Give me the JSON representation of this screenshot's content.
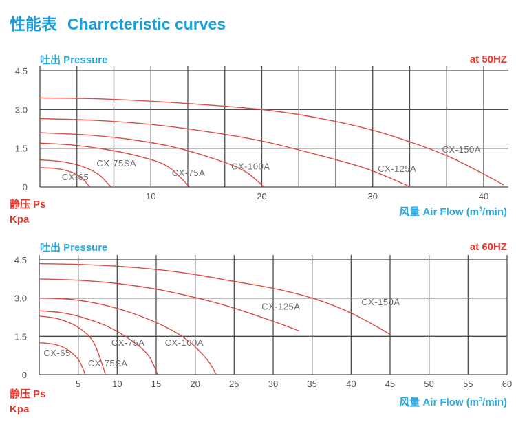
{
  "page": {
    "title_cn": "性能表",
    "title_en": "Charrcteristic curves"
  },
  "colors": {
    "accent_blue": "#18a0de",
    "red_text": "#e8392e",
    "curve_red": "#dc4b42",
    "grid_gray": "#4e4e4e"
  },
  "chart_data": [
    {
      "type": "line",
      "id": "50hz",
      "pressure_label": "吐出 Pressure",
      "freq_label": "at  50HZ",
      "ylabel_line1": "静压 Ps",
      "ylabel_line2": "Kpa",
      "xlabel_prefix": "风量  Air Flow (m",
      "xlabel_sup": "3",
      "xlabel_suffix": "/min)",
      "xlim": [
        0,
        42
      ],
      "ylim": [
        0,
        4.5
      ],
      "grid_on": true,
      "x_ticks": [
        {
          "value": 10,
          "label": "10"
        },
        {
          "value": 20,
          "label": "20"
        },
        {
          "value": 30,
          "label": "30"
        },
        {
          "value": 40,
          "label": "40"
        }
      ],
      "y_ticks": [
        {
          "value": 0,
          "label": "0"
        },
        {
          "value": 1.5,
          "label": "1.5"
        },
        {
          "value": 3,
          "label": "3.0"
        },
        {
          "value": 4.5,
          "label": "4.5"
        }
      ],
      "series": [
        {
          "name": "CX-65",
          "points": [
            [
              0,
              0.75
            ],
            [
              1.5,
              0.71
            ],
            [
              2.8,
              0.58
            ],
            [
              3.8,
              0.33
            ],
            [
              4.5,
              0
            ]
          ],
          "label": {
            "x": 3.2,
            "y": 0.27
          }
        },
        {
          "name": "CX-75SA",
          "points": [
            [
              0,
              1.05
            ],
            [
              2,
              0.98
            ],
            [
              3.8,
              0.8
            ],
            [
              5.3,
              0.48
            ],
            [
              6.4,
              0
            ]
          ],
          "label": {
            "x": 6.9,
            "y": 0.8
          }
        },
        {
          "name": "CX-75A",
          "points": [
            [
              0,
              1.7
            ],
            [
              3,
              1.62
            ],
            [
              6,
              1.45
            ],
            [
              9,
              1.18
            ],
            [
              11.5,
              0.8
            ],
            [
              13.5,
              0
            ]
          ],
          "label": {
            "x": 13.4,
            "y": 0.42
          }
        },
        {
          "name": "CX-100A",
          "points": [
            [
              0,
              2.1
            ],
            [
              4,
              2.02
            ],
            [
              8,
              1.85
            ],
            [
              12,
              1.55
            ],
            [
              16,
              1.05
            ],
            [
              18.5,
              0.6
            ],
            [
              20.2,
              0
            ]
          ],
          "label": {
            "x": 19.0,
            "y": 0.68
          }
        },
        {
          "name": "CX-125A",
          "points": [
            [
              0,
              2.65
            ],
            [
              5,
              2.58
            ],
            [
              10,
              2.42
            ],
            [
              15,
              2.15
            ],
            [
              20,
              1.78
            ],
            [
              25,
              1.25
            ],
            [
              29.5,
              0.7
            ],
            [
              33.4,
              0
            ]
          ],
          "label": {
            "x": 32.2,
            "y": 0.58
          }
        },
        {
          "name": "CX-150A",
          "points": [
            [
              0,
              3.45
            ],
            [
              5,
              3.42
            ],
            [
              10,
              3.32
            ],
            [
              15,
              3.18
            ],
            [
              20,
              3.0
            ],
            [
              25,
              2.68
            ],
            [
              30,
              2.2
            ],
            [
              34,
              1.65
            ],
            [
              37,
              1.15
            ],
            [
              40,
              0.5
            ],
            [
              41.8,
              0.08
            ]
          ],
          "label": {
            "x": 38.0,
            "y": 1.33
          }
        }
      ]
    },
    {
      "type": "line",
      "id": "60hz",
      "pressure_label": "吐出 Pressure",
      "freq_label": "at  60HZ",
      "ylabel_line1": "静压 Ps",
      "ylabel_line2": "Kpa",
      "xlabel_prefix": "风量  Air Flow (m",
      "xlabel_sup": "3",
      "xlabel_suffix": "/min)",
      "xlim": [
        0,
        60
      ],
      "ylim": [
        0,
        4.5
      ],
      "grid_on": true,
      "x_ticks": [
        {
          "value": 5,
          "label": "5"
        },
        {
          "value": 10,
          "label": "10"
        },
        {
          "value": 15,
          "label": "15"
        },
        {
          "value": 20,
          "label": "20"
        },
        {
          "value": 25,
          "label": "25"
        },
        {
          "value": 30,
          "label": "30"
        },
        {
          "value": 35,
          "label": "35"
        },
        {
          "value": 40,
          "label": "40"
        },
        {
          "value": 45,
          "label": "45"
        },
        {
          "value": 50,
          "label": "50"
        },
        {
          "value": 55,
          "label": "55"
        },
        {
          "value": 60,
          "label": "60"
        }
      ],
      "y_ticks": [
        {
          "value": 0,
          "label": "0"
        },
        {
          "value": 1.5,
          "label": "1.5"
        },
        {
          "value": 3,
          "label": "3.0"
        },
        {
          "value": 4.5,
          "label": "4.5"
        }
      ],
      "series": [
        {
          "name": "CX-65",
          "points": [
            [
              0,
              1.25
            ],
            [
              2,
              1.18
            ],
            [
              3.5,
              1.0
            ],
            [
              5,
              0.6
            ],
            [
              5.9,
              0
            ]
          ],
          "label": {
            "x": 2.3,
            "y": 0.73
          }
        },
        {
          "name": "CX-75SA",
          "points": [
            [
              0,
              2.3
            ],
            [
              2.5,
              2.18
            ],
            [
              5,
              1.85
            ],
            [
              7,
              1.25
            ],
            [
              8.5,
              0
            ]
          ],
          "label": {
            "x": 8.8,
            "y": 0.32
          }
        },
        {
          "name": "CX-75A",
          "points": [
            [
              0,
              2.5
            ],
            [
              3,
              2.42
            ],
            [
              6,
              2.2
            ],
            [
              9,
              1.85
            ],
            [
              12,
              1.3
            ],
            [
              14,
              0.75
            ],
            [
              15.2,
              0
            ]
          ],
          "label": {
            "x": 11.4,
            "y": 1.13
          }
        },
        {
          "name": "CX-100A",
          "points": [
            [
              0,
              3.0
            ],
            [
              4,
              2.95
            ],
            [
              8,
              2.75
            ],
            [
              12,
              2.4
            ],
            [
              16,
              1.9
            ],
            [
              19,
              1.35
            ],
            [
              21.5,
              0.6
            ],
            [
              22.7,
              0
            ]
          ],
          "label": {
            "x": 18.6,
            "y": 1.13
          }
        },
        {
          "name": "CX-125A",
          "points": [
            [
              0,
              3.75
            ],
            [
              5,
              3.7
            ],
            [
              10,
              3.57
            ],
            [
              15,
              3.35
            ],
            [
              20,
              3.02
            ],
            [
              24,
              2.7
            ],
            [
              28,
              2.3
            ],
            [
              31,
              1.98
            ],
            [
              33.3,
              1.72
            ]
          ],
          "label": {
            "x": 31.0,
            "y": 2.55
          }
        },
        {
          "name": "CX-150A",
          "points": [
            [
              0,
              4.35
            ],
            [
              5,
              4.32
            ],
            [
              10,
              4.25
            ],
            [
              15,
              4.12
            ],
            [
              20,
              3.92
            ],
            [
              25,
              3.65
            ],
            [
              30,
              3.38
            ],
            [
              35,
              3.0
            ],
            [
              39,
              2.55
            ],
            [
              42,
              2.1
            ],
            [
              45,
              1.58
            ]
          ],
          "label": {
            "x": 43.8,
            "y": 2.72
          }
        }
      ]
    }
  ]
}
